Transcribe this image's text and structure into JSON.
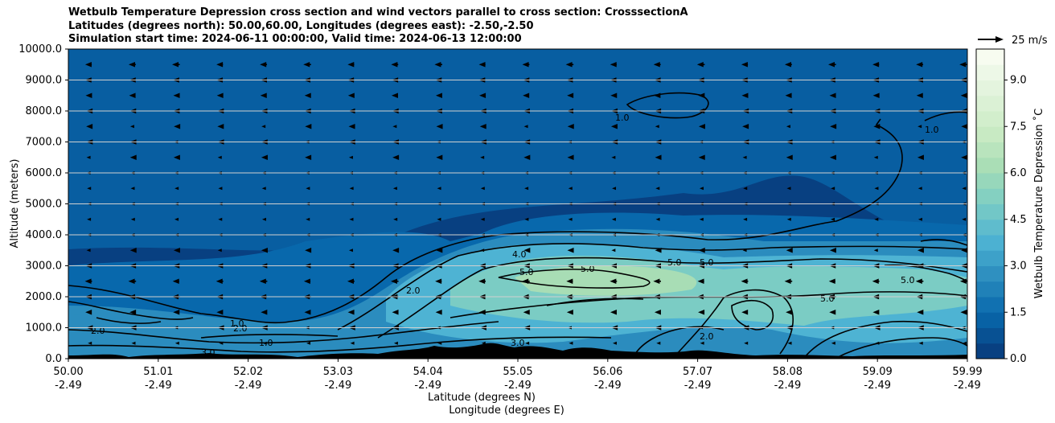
{
  "title": {
    "line1": "Wetbulb Temperature Depression cross section and wind vectors parallel to cross section: CrosssectionA",
    "line2": "Latitudes (degrees north): 50.00,60.00, Longitudes (degrees east): -2.50,-2.50",
    "line3": "Simulation start time: 2024-06-11 00:00:00, Valid time: 2024-06-13 12:00:00"
  },
  "chart_data": {
    "type": "heatmap",
    "ylabel": "Altitude (meters)",
    "xlabel_lat": "Latitude (degrees N)",
    "xlabel_lon": "Longitude (degrees E)",
    "ylim": [
      0,
      10000
    ],
    "y_ticks": [
      "0.0",
      "1000.0",
      "2000.0",
      "3000.0",
      "4000.0",
      "5000.0",
      "6000.0",
      "7000.0",
      "8000.0",
      "9000.0",
      "10000.0"
    ],
    "x_ticks_lat": [
      "50.00",
      "51.01",
      "52.02",
      "53.03",
      "54.04",
      "55.05",
      "56.06",
      "57.07",
      "58.08",
      "59.09",
      "59.99"
    ],
    "x_ticks_lon": [
      "-2.49",
      "-2.49",
      "-2.49",
      "-2.49",
      "-2.49",
      "-2.49",
      "-2.49",
      "-2.49",
      "-2.49",
      "-2.49",
      "-2.49"
    ],
    "grid": "horizontal",
    "colorbar": {
      "label": "Wetbulb Temperature Depression ˚C",
      "ticks": [
        "0.0",
        "1.5",
        "3.0",
        "4.5",
        "6.0",
        "7.5",
        "9.0"
      ],
      "range": [
        0,
        10
      ],
      "colors": [
        "#084081",
        "#0868ac",
        "#2b8cbe",
        "#4eb3d3",
        "#7bccc4",
        "#a8ddb5",
        "#ccebc5",
        "#e0f3db",
        "#f7fcf0"
      ]
    },
    "contour_labels": [
      "1.0",
      "2.0",
      "3.0",
      "4.0",
      "5.0"
    ],
    "wind_vectors": {
      "reference_label": "25 m/s",
      "reference_speed": 25,
      "direction": "westward (leftward) flow aloft, weakening below 5000 m",
      "levels_m": [
        500,
        1000,
        1500,
        2000,
        2500,
        3000,
        3500,
        4000,
        4500,
        5000,
        5500,
        6000,
        6500,
        7000,
        7500,
        8000,
        8500,
        9000,
        9500
      ],
      "speed_by_level_ms": [
        2,
        6,
        8,
        10,
        10,
        8,
        6,
        4,
        4,
        4,
        4,
        5,
        6,
        6,
        6,
        7,
        8,
        9,
        10
      ]
    },
    "terrain": "black filled orography near the surface"
  }
}
